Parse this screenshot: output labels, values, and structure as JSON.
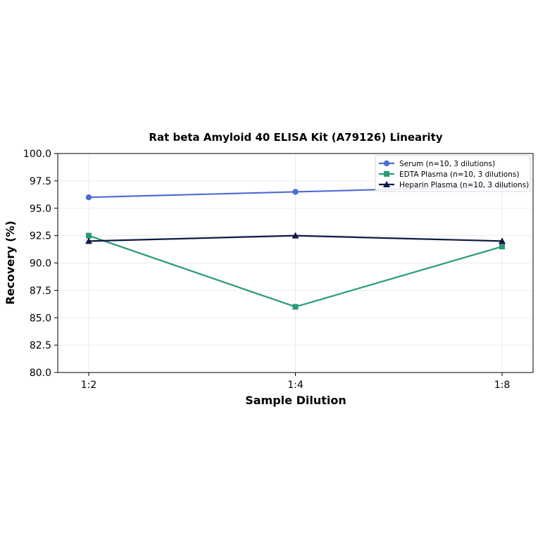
{
  "chart_data": {
    "type": "line",
    "title": "Rat beta Amyloid 40 ELISA Kit (A79126) Linearity",
    "xlabel": "Sample Dilution",
    "ylabel": "Recovery (%)",
    "categories": [
      "1:2",
      "1:4",
      "1:8"
    ],
    "ylim": [
      80.0,
      100.0
    ],
    "yticks": [
      "80.0",
      "82.5",
      "85.0",
      "87.5",
      "90.0",
      "92.5",
      "95.0",
      "97.5",
      "100.0"
    ],
    "grid": true,
    "legend_position": "top-right",
    "series": [
      {
        "name": "Serum (n=10, 3 dilutions)",
        "values": [
          96.0,
          96.5,
          97.0
        ],
        "color": "#4e6bd4",
        "marker": "circle"
      },
      {
        "name": "EDTA Plasma (n=10, 3 dilutions)",
        "values": [
          92.5,
          86.0,
          91.5
        ],
        "color": "#2a9a7a",
        "marker": "square"
      },
      {
        "name": "Heparin Plasma (n=10, 3 dilutions)",
        "values": [
          92.0,
          92.5,
          92.0
        ],
        "color": "#0f1a45",
        "marker": "triangle"
      }
    ]
  }
}
